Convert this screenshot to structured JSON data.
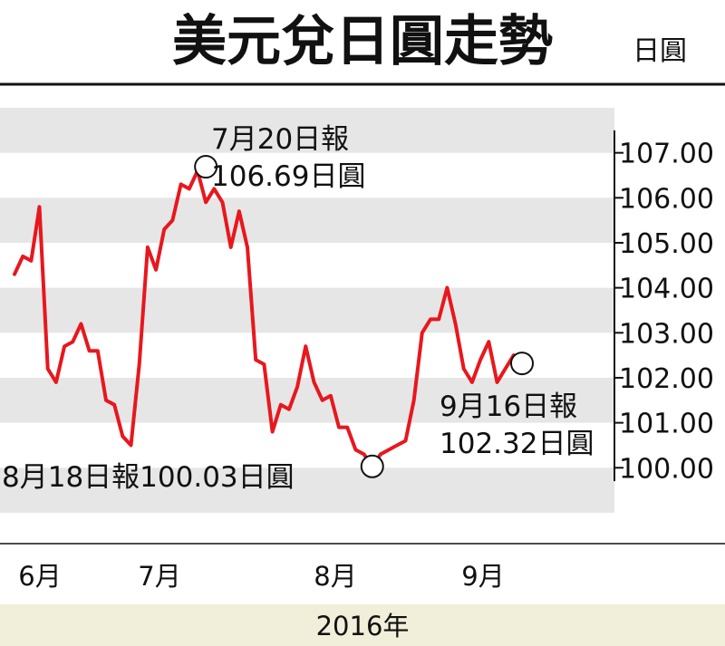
{
  "chart_data": {
    "type": "line",
    "title": "美元兌日圓走勢",
    "unit": "日圓",
    "x_axis_year": "2016年",
    "months": [
      "6月",
      "7月",
      "8月",
      "9月"
    ],
    "yticks": [
      "107.00",
      "106.00",
      "105.00",
      "104.00",
      "103.00",
      "102.00",
      "101.00",
      "100.00"
    ],
    "ylim": [
      99.2,
      108.0
    ],
    "grid": "alternating horizontal bands",
    "series": [
      {
        "color": "#e8171e",
        "values": [
          104.3,
          104.7,
          104.6,
          105.8,
          102.2,
          101.9,
          102.7,
          102.8,
          103.2,
          102.6,
          102.6,
          101.5,
          101.4,
          100.7,
          100.5,
          102.3,
          104.9,
          104.4,
          105.3,
          105.5,
          106.3,
          106.2,
          106.6,
          105.9,
          106.2,
          105.9,
          104.9,
          105.7,
          104.9,
          102.4,
          102.3,
          100.8,
          101.4,
          101.3,
          101.8,
          102.7,
          101.9,
          101.5,
          101.6,
          100.9,
          100.9,
          100.4,
          100.3,
          100.03,
          100.3,
          100.4,
          100.5,
          100.6,
          101.5,
          103.0,
          103.3,
          103.3,
          104.0,
          103.2,
          102.2,
          101.9,
          102.4,
          102.8,
          101.9,
          102.2,
          102.5,
          102.32
        ]
      }
    ],
    "annotations": [
      {
        "lines": [
          "7月20日報",
          "106.69日圓"
        ],
        "value": 106.69,
        "date": "7月20日"
      },
      {
        "lines": [
          "8月18日報100.03日圓"
        ],
        "value": 100.03,
        "date": "8月18日"
      },
      {
        "lines": [
          "9月16日報",
          "102.32日圓"
        ],
        "value": 102.32,
        "date": "9月16日"
      }
    ],
    "colors": {
      "line": "#e8171e",
      "band": "#e6e6e6",
      "footer": "#f1eeda"
    }
  }
}
